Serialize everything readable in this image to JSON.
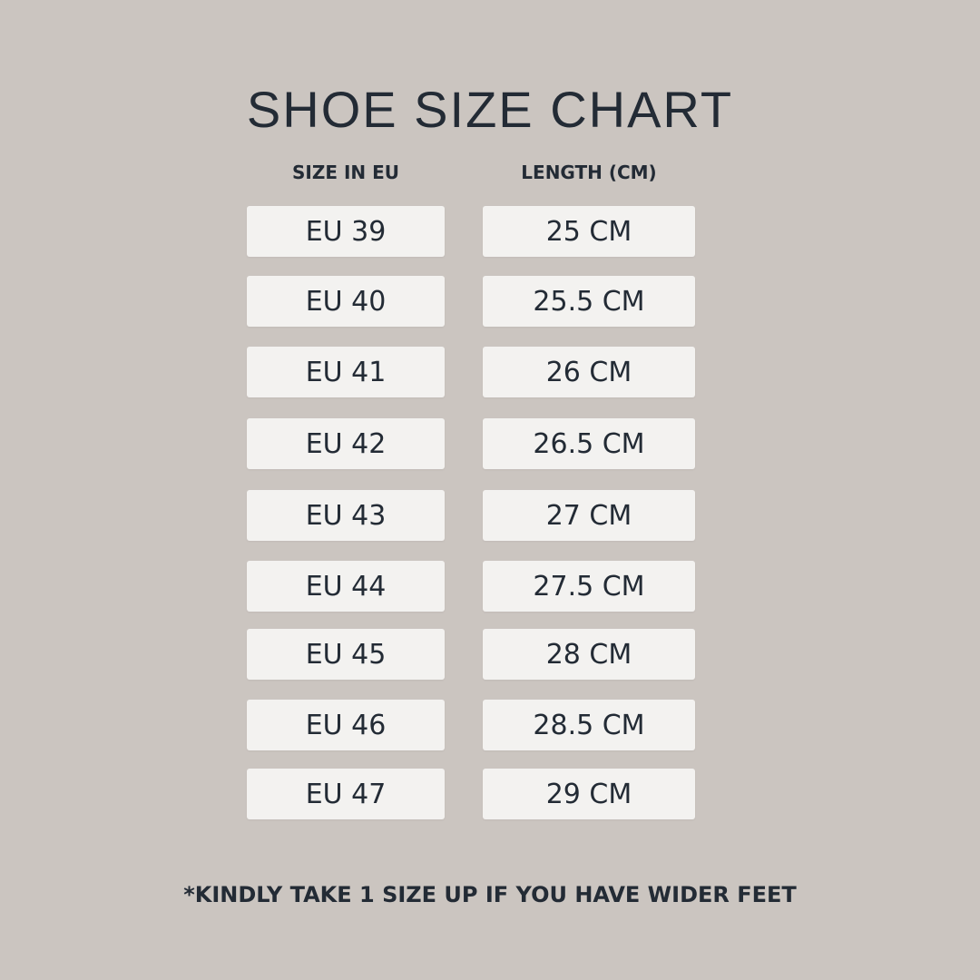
{
  "chart_data": {
    "type": "table",
    "title": "SHOE SIZE CHART",
    "columns": [
      "SIZE IN EU",
      "LENGTH (CM)"
    ],
    "rows": [
      [
        "EU 39",
        "25 CM"
      ],
      [
        "EU 40",
        "25.5 CM"
      ],
      [
        "EU 41",
        "26 CM"
      ],
      [
        "EU 42",
        "26.5 CM"
      ],
      [
        "EU 43",
        "27 CM"
      ],
      [
        "EU 44",
        "27.5 CM"
      ],
      [
        "EU 45",
        "28 CM"
      ],
      [
        "EU 46",
        "28.5 CM"
      ],
      [
        "EU 47",
        "29 CM"
      ]
    ],
    "footnote": "*KINDLY TAKE 1 SIZE UP IF YOU HAVE WIDER FEET"
  },
  "colors": {
    "background": "#cbc5c0",
    "cell": "#f3f2f0",
    "text": "#232b35"
  }
}
